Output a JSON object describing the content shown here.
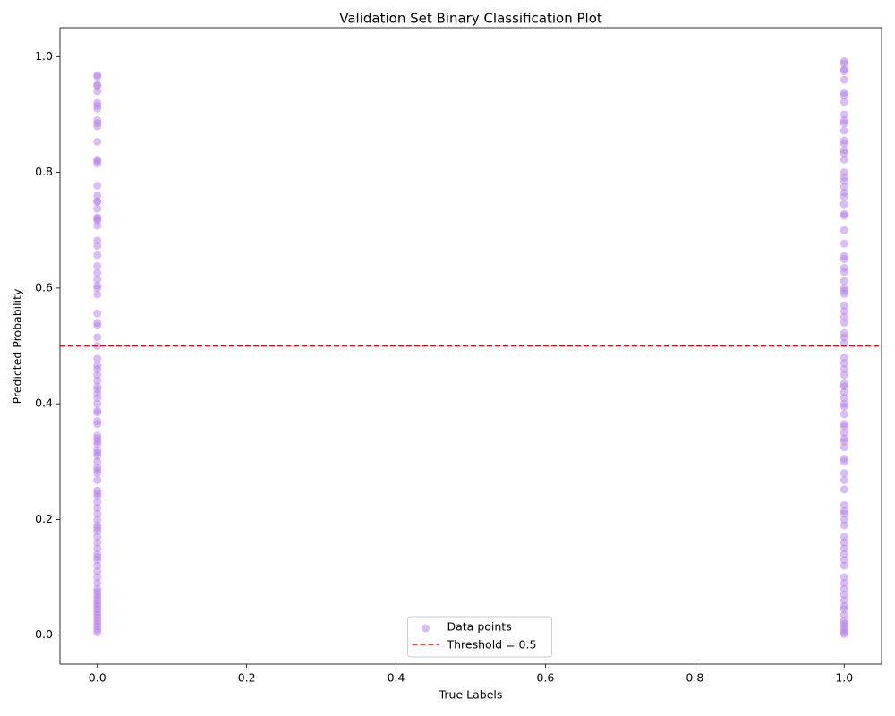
{
  "chart_data": {
    "type": "scatter",
    "title": "Validation Set Binary Classification Plot",
    "x_label": "True Labels",
    "y_label": "Predicted Probability",
    "xlim": [
      -0.05,
      1.05
    ],
    "ylim": [
      -0.05,
      1.05
    ],
    "xticks": [
      {
        "value": 0,
        "label": "0.0"
      },
      {
        "value": 0.2,
        "label": "0.2"
      },
      {
        "value": 0.4,
        "label": "0.4"
      },
      {
        "value": 0.6,
        "label": "0.6"
      },
      {
        "value": 0.8,
        "label": "0.8"
      },
      {
        "value": 1,
        "label": "1.0"
      }
    ],
    "yticks": [
      {
        "value": 0,
        "label": "0.0"
      },
      {
        "value": 0.2,
        "label": "0.2"
      },
      {
        "value": 0.4,
        "label": "0.4"
      },
      {
        "value": 0.6,
        "label": "0.6"
      },
      {
        "value": 0.8,
        "label": "0.8"
      },
      {
        "value": 1,
        "label": "1.0"
      }
    ],
    "grid": false,
    "legend": "lower center",
    "threshold": {
      "value": 0.5,
      "label": "Threshold = 0.5",
      "color": "#ff0000"
    },
    "series": [
      {
        "name": "Data points",
        "color": "#b57bf2",
        "x": [
          0,
          0,
          0,
          0,
          0,
          0,
          0,
          0,
          0,
          0,
          0,
          0,
          0,
          0,
          0,
          0,
          0,
          0,
          0,
          0,
          0,
          0,
          0,
          0,
          0,
          0,
          0,
          0,
          0,
          0,
          0,
          0,
          0,
          0,
          0,
          0,
          0,
          0,
          0,
          0,
          0,
          0,
          0,
          0,
          0,
          0,
          0,
          0,
          0,
          0,
          0,
          0,
          0,
          0,
          0,
          0,
          0,
          0,
          0,
          0,
          0,
          0,
          0,
          0,
          0,
          0,
          0,
          0,
          0,
          0,
          0,
          0,
          0,
          0,
          0,
          0,
          0,
          0,
          0,
          0,
          0,
          0,
          0,
          0,
          0,
          0,
          0,
          0,
          0,
          0,
          0,
          0,
          0,
          0,
          0,
          0,
          0,
          0,
          0,
          0,
          1,
          1,
          1,
          1,
          1,
          1,
          1,
          1,
          1,
          1,
          1,
          1,
          1,
          1,
          1,
          1,
          1,
          1,
          1,
          1,
          1,
          1,
          1,
          1,
          1,
          1,
          1,
          1,
          1,
          1,
          1,
          1,
          1,
          1,
          1,
          1,
          1,
          1,
          1,
          1,
          1,
          1,
          1,
          1,
          1,
          1,
          1,
          1,
          1,
          1,
          1,
          1,
          1,
          1,
          1,
          1,
          1,
          1,
          1,
          1,
          1,
          1,
          1,
          1,
          1,
          1,
          1,
          1,
          1,
          1,
          1,
          1,
          1,
          1,
          1,
          1,
          1,
          1,
          1,
          1,
          1,
          1,
          1,
          1,
          1,
          1,
          1,
          1,
          1,
          1
        ],
        "values": [
          0.968,
          0.965,
          0.951,
          0.95,
          0.94,
          0.92,
          0.915,
          0.91,
          0.89,
          0.885,
          0.88,
          0.853,
          0.822,
          0.82,
          0.815,
          0.777,
          0.76,
          0.75,
          0.749,
          0.737,
          0.722,
          0.72,
          0.717,
          0.708,
          0.682,
          0.673,
          0.657,
          0.638,
          0.626,
          0.615,
          0.604,
          0.6,
          0.589,
          0.556,
          0.54,
          0.535,
          0.515,
          0.5,
          0.478,
          0.466,
          0.46,
          0.45,
          0.44,
          0.43,
          0.425,
          0.418,
          0.41,
          0.4,
          0.388,
          0.385,
          0.37,
          0.365,
          0.345,
          0.34,
          0.335,
          0.33,
          0.32,
          0.315,
          0.31,
          0.3,
          0.29,
          0.285,
          0.28,
          0.268,
          0.25,
          0.245,
          0.24,
          0.23,
          0.22,
          0.21,
          0.2,
          0.19,
          0.185,
          0.18,
          0.17,
          0.16,
          0.15,
          0.14,
          0.135,
          0.13,
          0.12,
          0.11,
          0.1,
          0.09,
          0.08,
          0.075,
          0.07,
          0.065,
          0.06,
          0.055,
          0.05,
          0.045,
          0.04,
          0.035,
          0.03,
          0.025,
          0.02,
          0.015,
          0.01,
          0.005,
          0.992,
          0.988,
          0.978,
          0.975,
          0.96,
          0.938,
          0.933,
          0.922,
          0.9,
          0.89,
          0.885,
          0.872,
          0.855,
          0.85,
          0.838,
          0.833,
          0.822,
          0.8,
          0.792,
          0.785,
          0.775,
          0.765,
          0.758,
          0.745,
          0.728,
          0.725,
          0.7,
          0.677,
          0.655,
          0.65,
          0.635,
          0.628,
          0.612,
          0.6,
          0.595,
          0.59,
          0.57,
          0.56,
          0.55,
          0.54,
          0.522,
          0.515,
          0.505,
          0.48,
          0.47,
          0.46,
          0.45,
          0.435,
          0.43,
          0.42,
          0.41,
          0.4,
          0.395,
          0.382,
          0.365,
          0.36,
          0.35,
          0.34,
          0.335,
          0.325,
          0.305,
          0.3,
          0.28,
          0.268,
          0.252,
          0.225,
          0.215,
          0.21,
          0.2,
          0.19,
          0.17,
          0.16,
          0.15,
          0.14,
          0.13,
          0.12,
          0.1,
          0.09,
          0.08,
          0.07,
          0.06,
          0.05,
          0.045,
          0.035,
          0.025,
          0.02,
          0.015,
          0.01,
          0.005,
          0.002
        ]
      }
    ]
  }
}
